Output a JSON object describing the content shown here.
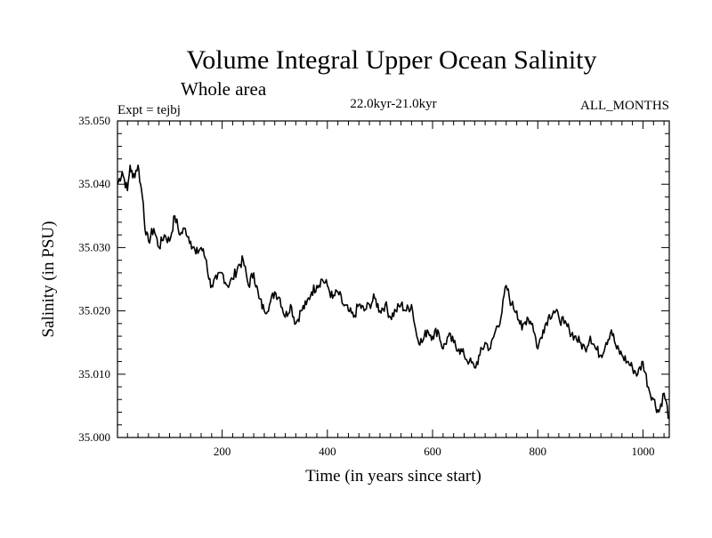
{
  "chart_data": {
    "type": "line",
    "title": "Volume Integral Upper Ocean Salinity",
    "subtitle": "Whole area",
    "expt_label": "Expt = tejbj",
    "period_label": "22.0kyr-21.0kyr",
    "months_label": "ALL_MONTHS",
    "xlabel": "Time (in years since start)",
    "ylabel": "Salinity (in PSU)",
    "xlim": [
      1,
      1050
    ],
    "ylim": [
      35.0,
      35.05
    ],
    "xticks": [
      200,
      400,
      600,
      800,
      1000
    ],
    "yticks": [
      35.0,
      35.01,
      35.02,
      35.03,
      35.04,
      35.05
    ],
    "ytick_labels": [
      "35.000",
      "35.010",
      "35.020",
      "35.030",
      "35.040",
      "35.050"
    ],
    "grid": false,
    "series": [
      {
        "name": "Salinity",
        "color": "#000000",
        "x": [
          1,
          10,
          20,
          25,
          30,
          40,
          45,
          50,
          55,
          60,
          70,
          80,
          90,
          100,
          110,
          120,
          130,
          140,
          150,
          160,
          170,
          175,
          180,
          190,
          200,
          210,
          220,
          230,
          240,
          250,
          260,
          270,
          280,
          290,
          300,
          310,
          320,
          330,
          340,
          350,
          360,
          370,
          380,
          390,
          400,
          410,
          420,
          430,
          440,
          450,
          460,
          470,
          480,
          490,
          500,
          510,
          520,
          530,
          540,
          550,
          560,
          570,
          580,
          590,
          600,
          610,
          620,
          630,
          640,
          650,
          660,
          670,
          680,
          690,
          700,
          710,
          720,
          730,
          740,
          750,
          760,
          770,
          780,
          790,
          800,
          810,
          820,
          830,
          840,
          850,
          860,
          870,
          880,
          890,
          900,
          910,
          920,
          930,
          940,
          950,
          960,
          970,
          980,
          990,
          1000,
          1010,
          1020,
          1030,
          1040,
          1050
        ],
        "values": [
          35.04,
          35.042,
          35.039,
          35.043,
          35.041,
          35.043,
          35.04,
          35.037,
          35.032,
          35.031,
          35.033,
          35.03,
          35.032,
          35.031,
          35.035,
          35.032,
          35.033,
          35.031,
          35.029,
          35.03,
          35.028,
          35.025,
          35.024,
          35.025,
          35.026,
          35.024,
          35.025,
          35.027,
          35.028,
          35.024,
          35.026,
          35.022,
          35.02,
          35.021,
          35.023,
          35.022,
          35.019,
          35.021,
          35.018,
          35.02,
          35.021,
          35.023,
          35.024,
          35.025,
          35.024,
          35.022,
          35.023,
          35.021,
          35.02,
          35.019,
          35.021,
          35.02,
          35.021,
          35.022,
          35.02,
          35.021,
          35.019,
          35.02,
          35.021,
          35.02,
          35.021,
          35.016,
          35.015,
          35.017,
          35.016,
          35.017,
          35.014,
          35.016,
          35.015,
          35.014,
          35.013,
          35.012,
          35.011,
          35.013,
          35.015,
          35.014,
          35.017,
          35.019,
          35.024,
          35.021,
          35.02,
          35.017,
          35.019,
          35.018,
          35.014,
          35.017,
          35.019,
          35.02,
          35.019,
          35.018,
          35.017,
          35.016,
          35.015,
          35.014,
          35.016,
          35.014,
          35.013,
          35.015,
          35.017,
          35.014,
          35.013,
          35.012,
          35.011,
          35.01,
          35.012,
          35.008,
          35.006,
          35.004,
          35.007,
          35.003
        ]
      }
    ]
  }
}
